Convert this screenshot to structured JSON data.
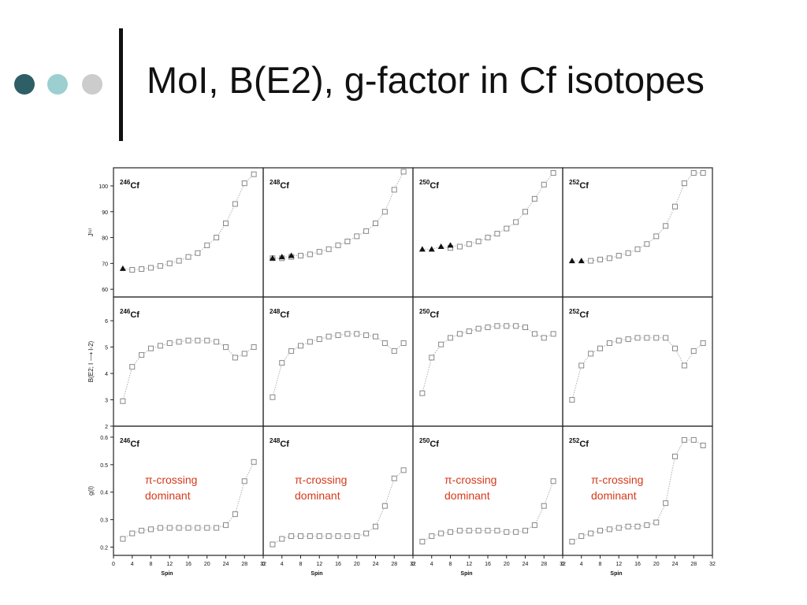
{
  "slide": {
    "title": "MoI, B(E2), g-factor in Cf isotopes",
    "bullet_colors": [
      "#2e5f66",
      "#9ccfcf",
      "#cccccc"
    ]
  },
  "colors": {
    "marker": "#888888",
    "line": "#b0b0b0",
    "annotation": "#d43a1a",
    "text": "#111111"
  },
  "chart_data": [
    {
      "type": "scatter",
      "title": "",
      "ylabel": "J⁽¹⁾",
      "yticks": [
        60,
        70,
        80,
        90,
        100
      ],
      "ylim": [
        57,
        107
      ],
      "panels": [
        {
          "label_mass": "246",
          "label_elem": "Cf",
          "open": {
            "x": [
              4,
              6,
              8,
              10,
              12,
              14,
              16,
              18,
              20,
              22,
              24,
              26,
              28,
              30
            ],
            "y": [
              67.5,
              67.8,
              68.3,
              69,
              70,
              71,
              72.5,
              74,
              77,
              80,
              85.5,
              93,
              101,
              104.5
            ]
          },
          "filled": {
            "x": [
              2
            ],
            "y": [
              68
            ]
          }
        },
        {
          "label_mass": "248",
          "label_elem": "Cf",
          "open": {
            "x": [
              2,
              4,
              6,
              8,
              10,
              12,
              14,
              16,
              18,
              20,
              22,
              24,
              26,
              28,
              30
            ],
            "y": [
              72,
              72,
              72.5,
              73,
              73.5,
              74.5,
              75.5,
              77,
              78.5,
              80.5,
              82.5,
              85.5,
              90,
              98.5,
              105.5
            ]
          },
          "filled": {
            "x": [
              2,
              4,
              6
            ],
            "y": [
              72,
              72.5,
              73
            ]
          }
        },
        {
          "label_mass": "250",
          "label_elem": "Cf",
          "open": {
            "x": [
              8,
              10,
              12,
              14,
              16,
              18,
              20,
              22,
              24,
              26,
              28,
              30
            ],
            "y": [
              76,
              76.5,
              77.5,
              78.5,
              80,
              81.5,
              83.5,
              86,
              90,
              95,
              100.5,
              105
            ]
          },
          "filled": {
            "x": [
              2,
              4,
              6,
              8
            ],
            "y": [
              75.5,
              75.5,
              76.5,
              77
            ]
          }
        },
        {
          "label_mass": "252",
          "label_elem": "Cf",
          "open": {
            "x": [
              6,
              8,
              10,
              12,
              14,
              16,
              18,
              20,
              22,
              24,
              26,
              28,
              30
            ],
            "y": [
              71,
              71.5,
              72,
              73,
              74,
              75.5,
              77.5,
              80.5,
              84.5,
              92,
              101,
              105,
              105
            ]
          },
          "filled": {
            "x": [
              2,
              4
            ],
            "y": [
              71,
              71
            ]
          }
        }
      ]
    },
    {
      "type": "scatter",
      "title": "",
      "ylabel": "B(E2; I ⟶ I-2)",
      "yticks": [
        2,
        3,
        4,
        5,
        6
      ],
      "ylim": [
        2,
        6.9
      ],
      "panels": [
        {
          "label_mass": "246",
          "label_elem": "Cf",
          "open": {
            "x": [
              2,
              4,
              6,
              8,
              10,
              12,
              14,
              16,
              18,
              20,
              22,
              24,
              26,
              28,
              30
            ],
            "y": [
              2.95,
              4.25,
              4.7,
              4.95,
              5.05,
              5.15,
              5.2,
              5.25,
              5.25,
              5.25,
              5.2,
              5.0,
              4.6,
              4.75,
              5.0
            ]
          }
        },
        {
          "label_mass": "248",
          "label_elem": "Cf",
          "open": {
            "x": [
              2,
              4,
              6,
              8,
              10,
              12,
              14,
              16,
              18,
              20,
              22,
              24,
              26,
              28,
              30
            ],
            "y": [
              3.1,
              4.4,
              4.85,
              5.05,
              5.2,
              5.3,
              5.4,
              5.45,
              5.5,
              5.5,
              5.45,
              5.4,
              5.15,
              4.85,
              5.15
            ]
          }
        },
        {
          "label_mass": "250",
          "label_elem": "Cf",
          "open": {
            "x": [
              2,
              4,
              6,
              8,
              10,
              12,
              14,
              16,
              18,
              20,
              22,
              24,
              26,
              28,
              30
            ],
            "y": [
              3.25,
              4.6,
              5.1,
              5.35,
              5.5,
              5.6,
              5.7,
              5.75,
              5.8,
              5.8,
              5.8,
              5.75,
              5.5,
              5.35,
              5.5
            ]
          }
        },
        {
          "label_mass": "252",
          "label_elem": "Cf",
          "open": {
            "x": [
              2,
              4,
              6,
              8,
              10,
              12,
              14,
              16,
              18,
              20,
              22,
              24,
              26,
              28,
              30
            ],
            "y": [
              3.0,
              4.3,
              4.75,
              4.95,
              5.15,
              5.25,
              5.3,
              5.35,
              5.35,
              5.35,
              5.35,
              4.95,
              4.3,
              4.85,
              5.15
            ]
          }
        }
      ]
    },
    {
      "type": "scatter",
      "title": "",
      "xlabel": "Spin",
      "ylabel": "g(I)",
      "yticks": [
        0.2,
        0.3,
        0.4,
        0.5,
        0.6
      ],
      "ylim": [
        0.17,
        0.64
      ],
      "xticks": [
        0,
        4,
        8,
        12,
        16,
        20,
        24,
        28,
        32
      ],
      "xlim": [
        0,
        32
      ],
      "annotation": [
        "π-crossing",
        "dominant"
      ],
      "panels": [
        {
          "label_mass": "246",
          "label_elem": "Cf",
          "open": {
            "x": [
              2,
              4,
              6,
              8,
              10,
              12,
              14,
              16,
              18,
              20,
              22,
              24,
              26,
              28,
              30
            ],
            "y": [
              0.23,
              0.25,
              0.26,
              0.265,
              0.27,
              0.27,
              0.27,
              0.27,
              0.27,
              0.27,
              0.27,
              0.28,
              0.32,
              0.44,
              0.51
            ]
          }
        },
        {
          "label_mass": "248",
          "label_elem": "Cf",
          "open": {
            "x": [
              2,
              4,
              6,
              8,
              10,
              12,
              14,
              16,
              18,
              20,
              22,
              24,
              26,
              28,
              30
            ],
            "y": [
              0.21,
              0.23,
              0.24,
              0.24,
              0.24,
              0.24,
              0.24,
              0.24,
              0.24,
              0.24,
              0.25,
              0.275,
              0.35,
              0.45,
              0.48
            ]
          }
        },
        {
          "label_mass": "250",
          "label_elem": "Cf",
          "open": {
            "x": [
              2,
              4,
              6,
              8,
              10,
              12,
              14,
              16,
              18,
              20,
              22,
              24,
              26,
              28,
              30
            ],
            "y": [
              0.22,
              0.24,
              0.25,
              0.255,
              0.26,
              0.26,
              0.26,
              0.26,
              0.26,
              0.255,
              0.255,
              0.26,
              0.28,
              0.35,
              0.44
            ]
          }
        },
        {
          "label_mass": "252",
          "label_elem": "Cf",
          "open": {
            "x": [
              2,
              4,
              6,
              8,
              10,
              12,
              14,
              16,
              18,
              20,
              22,
              24,
              26,
              28,
              30
            ],
            "y": [
              0.22,
              0.24,
              0.25,
              0.26,
              0.265,
              0.27,
              0.275,
              0.275,
              0.28,
              0.29,
              0.36,
              0.53,
              0.59,
              0.59,
              0.57
            ]
          }
        }
      ]
    }
  ]
}
